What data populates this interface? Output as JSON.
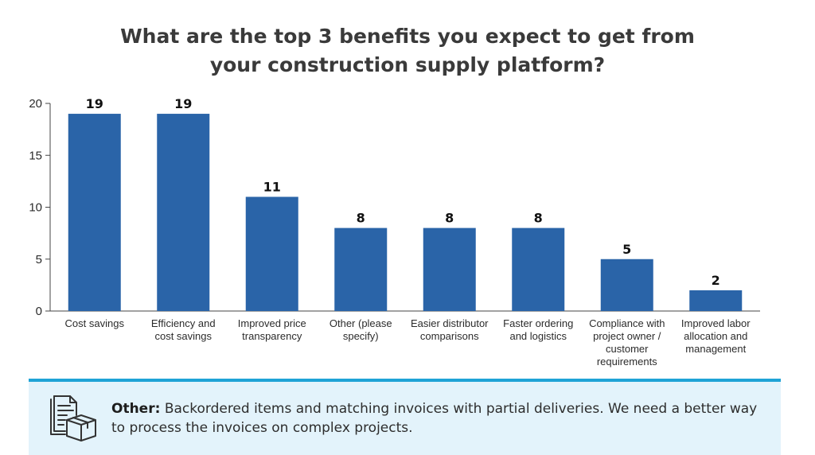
{
  "title_lines": [
    "What are the top 3 benefits you expect to get from",
    "your construction supply platform?"
  ],
  "chart_data": {
    "type": "bar",
    "categories": [
      [
        "Cost savings"
      ],
      [
        "Efficiency and",
        "cost savings"
      ],
      [
        "Improved price",
        "transparency"
      ],
      [
        "Other (please",
        "specify)"
      ],
      [
        "Easier distributor",
        "comparisons"
      ],
      [
        "Faster ordering",
        "and logistics"
      ],
      [
        "Compliance with",
        "project owner /",
        "customer",
        "requirements"
      ],
      [
        "Improved labor",
        "allocation and",
        "management"
      ]
    ],
    "values": [
      19,
      19,
      11,
      8,
      8,
      8,
      5,
      2
    ],
    "y_ticks": [
      0,
      5,
      10,
      15,
      20
    ],
    "ylim": [
      0,
      20
    ],
    "grid": false,
    "bar_color": "#2a64a8"
  },
  "note": {
    "label": "Other:",
    "text": "Backordered items and matching invoices with partial deliveries. We need a better way to process the invoices on complex projects.",
    "icon": "document-box-icon",
    "accent_color": "#1fa3d6",
    "background_color": "#e3f3fb"
  }
}
